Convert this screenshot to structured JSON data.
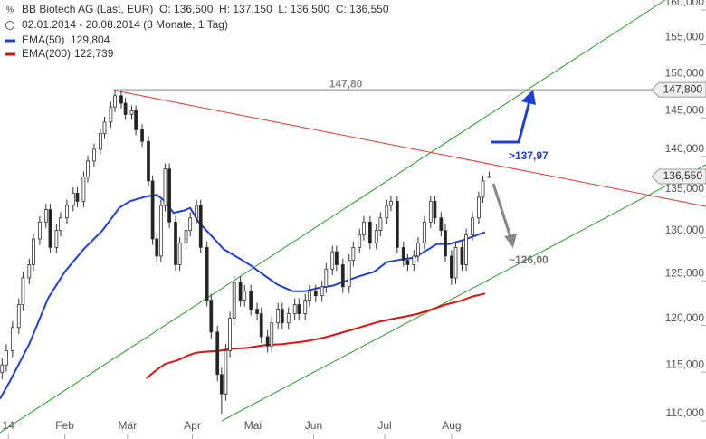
{
  "chart_data": {
    "type": "candlestick",
    "title": "BB Biotech AG (Last, EUR)",
    "ohlc_text": "O: 136,500  H: 137,150  L: 136,500  C: 136,550",
    "subtitle": "02.01.2014 - 20.08.2014 (8 Monate, 1 Tag)",
    "log_scale": true,
    "grid": false,
    "xlim": [
      0,
      337.7
    ],
    "ylim": [
      107.49,
      160.4
    ],
    "xticks": [
      {
        "value": 4,
        "label": "14"
      },
      {
        "value": 31,
        "label": "Feb"
      },
      {
        "value": 61,
        "label": "Mär"
      },
      {
        "value": 92,
        "label": "Apr"
      },
      {
        "value": 121,
        "label": "Mai"
      },
      {
        "value": 150,
        "label": "Jun"
      },
      {
        "value": 184,
        "label": "Jul"
      },
      {
        "value": 216,
        "label": "Aug"
      }
    ],
    "yticks": [
      {
        "value": 110,
        "label": "110,000"
      },
      {
        "value": 115,
        "label": "115,000"
      },
      {
        "value": 120,
        "label": "120,000"
      },
      {
        "value": 125,
        "label": "125,000"
      },
      {
        "value": 130,
        "label": "130,000"
      },
      {
        "value": 135,
        "label": "135,000"
      },
      {
        "value": 140,
        "label": "140,000"
      },
      {
        "value": 145,
        "label": "145,000"
      },
      {
        "value": 150,
        "label": "150,000"
      },
      {
        "value": 155,
        "label": "155,000"
      },
      {
        "value": 160,
        "label": "160,000"
      }
    ],
    "x": [
      1,
      3,
      6,
      9,
      11,
      14,
      16,
      19,
      22,
      24,
      27,
      29,
      32,
      35,
      37,
      40,
      42,
      45,
      48,
      50,
      53,
      55,
      58,
      60,
      63,
      65,
      68,
      71,
      73,
      75,
      77,
      79,
      81,
      84,
      86,
      89,
      91,
      94,
      96,
      99,
      101,
      104,
      106,
      108,
      110,
      112,
      115,
      117,
      120,
      123,
      125,
      128,
      130,
      133,
      135,
      138,
      141,
      143,
      146,
      148,
      151,
      154,
      156,
      159,
      161,
      164,
      167,
      169,
      172,
      174,
      177,
      180,
      182,
      185,
      187,
      190,
      193,
      195,
      198,
      200,
      203,
      206,
      208,
      211,
      213,
      216,
      218,
      221,
      223,
      226,
      229,
      231,
      234
    ],
    "open": [
      114.2,
      115.0,
      116.5,
      119.0,
      121.5,
      124.5,
      126.0,
      129.0,
      131.0,
      132.5,
      128.0,
      130.0,
      131.5,
      133.0,
      134.5,
      133.5,
      136.5,
      138.5,
      140.0,
      142.0,
      143.5,
      145.5,
      147.0,
      146.0,
      144.5,
      145.0,
      142.5,
      141.0,
      136.0,
      129.0,
      127.0,
      133.0,
      137.5,
      131.0,
      126.0,
      128.5,
      130.0,
      131.5,
      133.0,
      128.0,
      122.0,
      118.5,
      114.0,
      112.0,
      116.5,
      120.0,
      124.0,
      122.0,
      123.0,
      121.0,
      120.5,
      118.0,
      117.0,
      119.5,
      121.0,
      119.5,
      120.5,
      121.5,
      120.5,
      122.0,
      123.0,
      122.5,
      123.5,
      125.5,
      127.5,
      126.0,
      123.5,
      126.5,
      128.0,
      129.5,
      131.0,
      128.5,
      130.0,
      131.5,
      133.0,
      133.5,
      128.0,
      126.5,
      126.0,
      127.0,
      128.5,
      131.0,
      133.5,
      131.5,
      130.0,
      127.0,
      124.5,
      128.0,
      126.0,
      129.5,
      131.5,
      134.0,
      136.5
    ],
    "high": [
      115.7,
      117.2,
      119.7,
      122.2,
      125.2,
      126.7,
      129.7,
      131.7,
      133.2,
      133.2,
      130.7,
      132.2,
      133.7,
      135.2,
      135.2,
      137.2,
      139.2,
      140.7,
      142.7,
      144.2,
      146.2,
      147.8,
      147.7,
      146.7,
      145.7,
      145.7,
      143.2,
      141.7,
      136.7,
      129.7,
      133.7,
      138.2,
      138.2,
      131.7,
      129.2,
      130.7,
      132.2,
      133.7,
      133.7,
      128.7,
      122.7,
      119.2,
      114.7,
      117.2,
      120.7,
      124.7,
      124.7,
      123.7,
      123.7,
      121.7,
      121.2,
      118.7,
      120.2,
      121.7,
      121.7,
      121.2,
      122.2,
      122.2,
      122.7,
      123.7,
      123.7,
      124.2,
      126.2,
      128.2,
      128.2,
      126.7,
      127.2,
      128.7,
      130.2,
      131.7,
      131.7,
      130.7,
      132.2,
      133.7,
      134.2,
      134.2,
      128.7,
      127.2,
      127.7,
      129.2,
      131.7,
      134.2,
      134.2,
      132.2,
      130.7,
      127.7,
      128.7,
      128.7,
      130.2,
      132.2,
      134.7,
      136.7,
      137.15
    ],
    "low": [
      113.5,
      114.3,
      115.8,
      118.3,
      120.8,
      123.8,
      125.3,
      128.3,
      130.3,
      127.3,
      127.3,
      129.3,
      130.8,
      132.3,
      132.8,
      132.8,
      135.8,
      137.8,
      139.3,
      141.3,
      142.8,
      144.8,
      145.3,
      143.8,
      143.8,
      141.8,
      140.3,
      135.3,
      128.3,
      126.3,
      126.3,
      132.3,
      130.3,
      125.3,
      125.3,
      127.8,
      129.3,
      130.8,
      127.3,
      121.3,
      117.8,
      113.3,
      110.0,
      111.3,
      115.8,
      119.3,
      121.3,
      121.3,
      120.3,
      119.8,
      117.3,
      116.3,
      116.3,
      118.8,
      118.8,
      118.8,
      119.8,
      119.8,
      119.8,
      121.3,
      121.8,
      121.8,
      122.8,
      124.8,
      125.3,
      122.8,
      122.8,
      125.8,
      127.3,
      128.8,
      127.8,
      127.8,
      129.3,
      130.8,
      132.3,
      127.3,
      125.8,
      125.3,
      125.3,
      126.3,
      127.8,
      130.3,
      130.8,
      129.3,
      126.3,
      123.7,
      123.8,
      125.3,
      125.3,
      128.8,
      130.8,
      133.3,
      136.5
    ],
    "close": [
      115.0,
      116.5,
      119.0,
      121.5,
      124.5,
      126.0,
      129.0,
      131.0,
      132.5,
      128.0,
      130.0,
      131.5,
      133.0,
      134.5,
      133.5,
      136.5,
      138.5,
      140.0,
      142.0,
      143.5,
      145.5,
      147.0,
      146.0,
      144.5,
      145.0,
      142.5,
      141.0,
      136.0,
      129.0,
      127.0,
      133.0,
      137.5,
      131.0,
      126.0,
      128.5,
      130.0,
      131.5,
      133.0,
      128.0,
      122.0,
      118.5,
      114.0,
      112.0,
      116.5,
      120.0,
      124.0,
      122.0,
      123.0,
      121.0,
      120.5,
      118.0,
      117.0,
      119.5,
      121.0,
      119.5,
      120.5,
      121.5,
      120.5,
      122.0,
      123.0,
      122.5,
      123.5,
      125.5,
      127.5,
      126.0,
      123.5,
      126.5,
      128.0,
      129.5,
      131.0,
      128.5,
      130.0,
      131.5,
      133.0,
      133.5,
      128.0,
      126.5,
      126.0,
      127.0,
      128.5,
      131.0,
      133.5,
      131.5,
      130.0,
      127.0,
      124.5,
      128.0,
      126.0,
      129.5,
      131.5,
      134.0,
      136.0,
      136.55
    ],
    "last_price_label": "136,550",
    "up_color": "#ffffff",
    "down_color": "#222222",
    "series": [
      {
        "name": "EMA(50)",
        "last_label": "129,804",
        "color": "#1f3fd8",
        "x": [
          0,
          5,
          14,
          23,
          31,
          40,
          49,
          57,
          62,
          66,
          70,
          75,
          79,
          83,
          88,
          91,
          95,
          101,
          107,
          114,
          120,
          127,
          133,
          140,
          146,
          153,
          159,
          166,
          172,
          179,
          185,
          192,
          198,
          205,
          209,
          215,
          222,
          232
        ],
        "values": [
          111.5,
          113.4,
          117.2,
          122.2,
          125.2,
          127.8,
          130.0,
          132.7,
          133.5,
          133.8,
          134.1,
          134.3,
          133.5,
          132.1,
          132.4,
          132.7,
          131.0,
          129.4,
          127.8,
          126.8,
          125.9,
          124.7,
          123.7,
          123.0,
          123.0,
          123.4,
          123.6,
          124.2,
          124.7,
          125.2,
          126.3,
          126.6,
          126.8,
          127.8,
          128.4,
          128.4,
          128.9,
          129.804
        ]
      },
      {
        "name": "EMA(200)",
        "last_label": "122,739",
        "color": "#dd1111",
        "x": [
          70,
          75,
          79,
          85,
          90,
          94,
          99,
          105,
          111,
          118,
          127,
          135,
          146,
          155,
          163,
          172,
          181,
          187,
          194,
          200,
          207,
          213,
          220,
          226,
          232
        ],
        "values": [
          113.6,
          114.5,
          115.1,
          115.5,
          116.0,
          116.3,
          116.4,
          116.5,
          116.7,
          116.8,
          117.1,
          117.2,
          117.5,
          117.9,
          118.4,
          119.0,
          119.6,
          119.9,
          120.2,
          120.5,
          121.0,
          121.5,
          121.9,
          122.4,
          122.739
        ]
      }
    ],
    "hline": {
      "value": 147.8,
      "label": "147,80",
      "axis_label": "147,800",
      "color": "#888888"
    },
    "annotations": [
      ">137,97",
      "~126,00"
    ]
  }
}
